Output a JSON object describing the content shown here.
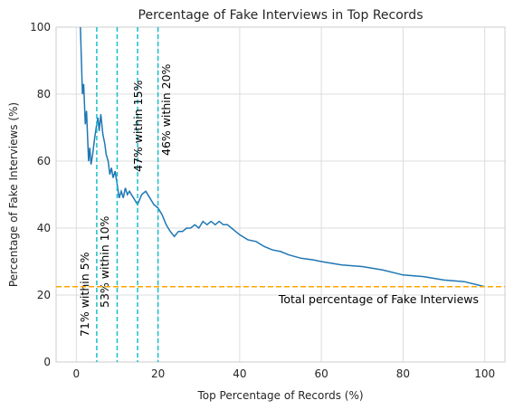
{
  "chart_data": {
    "type": "line",
    "title": "Percentage of Fake Interviews in Top Records",
    "x_label": "Top Percentage of Records (%)",
    "y_label": "Percentage of Fake Interviews (%)",
    "x": [
      1.0,
      1.5,
      1.8,
      2.2,
      2.5,
      3.0,
      3.3,
      3.6,
      4.0,
      4.5,
      5.0,
      5.3,
      5.6,
      6.0,
      6.5,
      7.0,
      7.3,
      7.8,
      8.2,
      8.6,
      9.0,
      9.5,
      10.0,
      10.5,
      11,
      11.5,
      12,
      12.5,
      13,
      14,
      15,
      16,
      17,
      18,
      19,
      20,
      21,
      22,
      23,
      24,
      25,
      26,
      27,
      28,
      29,
      30,
      31,
      32,
      33,
      34,
      35,
      36,
      37,
      38,
      40,
      42,
      44,
      46,
      48,
      50,
      52,
      55,
      58,
      60,
      65,
      70,
      75,
      80,
      85,
      90,
      95,
      100
    ],
    "series": [
      {
        "color": "#1f77b4",
        "values": [
          100,
          80,
          83,
          71,
          75,
          60,
          64,
          59,
          62,
          67,
          71,
          73,
          69,
          74,
          68,
          65,
          62,
          60,
          56,
          58,
          55,
          57,
          53,
          49,
          51,
          49,
          52,
          50,
          51,
          49,
          47,
          50,
          51,
          49,
          47,
          46,
          44,
          41,
          39,
          37.5,
          39,
          39,
          40,
          40,
          41,
          40,
          42,
          41,
          42,
          41,
          42,
          41,
          41,
          40,
          38,
          36.5,
          36,
          34.5,
          33.5,
          33,
          32,
          31,
          30.5,
          30,
          29,
          28.5,
          27.5,
          26,
          25.5,
          24.5,
          24,
          22.5
        ]
      }
    ],
    "xlim": [
      -4.95,
      104.95
    ],
    "ylim": [
      0,
      100
    ],
    "xticks": [
      0,
      20,
      40,
      60,
      80,
      100
    ],
    "yticks": [
      0,
      20,
      40,
      60,
      80,
      100
    ],
    "grid": true,
    "hline": {
      "value": 22.5,
      "color": "#ffa500",
      "label": "Total percentage of Fake Interviews"
    },
    "vlines": {
      "color": "#17becf",
      "values": [
        5,
        10,
        15,
        20
      ],
      "labels": [
        "71% within 5%",
        "53% within 10%",
        "47% within 15%",
        "46% within 20%"
      ]
    }
  }
}
